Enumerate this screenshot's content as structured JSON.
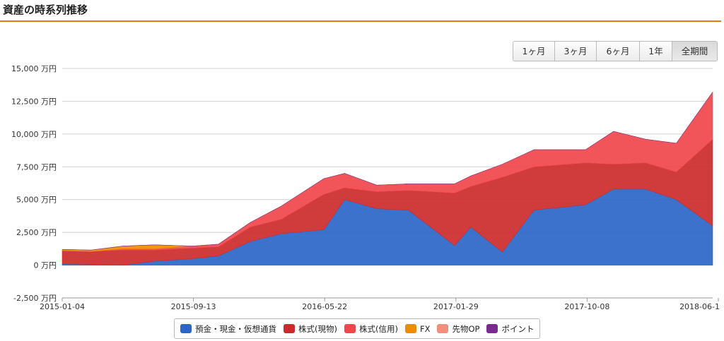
{
  "title": "資産の時系列推移",
  "range_buttons": [
    {
      "label": "1ヶ月",
      "active": false
    },
    {
      "label": "3ヶ月",
      "active": false
    },
    {
      "label": "6ヶ月",
      "active": false
    },
    {
      "label": "1年",
      "active": false
    },
    {
      "label": "全期間",
      "active": true
    }
  ],
  "chart_data": {
    "type": "area",
    "stacked": true,
    "y_unit": "万円",
    "ylim": [
      -2500,
      15000
    ],
    "y_ticks": [
      "15,000 万円",
      "12,500 万円",
      "10,000 万円",
      "7,500 万円",
      "5,000 万円",
      "2,500 万円",
      "0 万円",
      "-2,500 万円"
    ],
    "y_tick_values": [
      15000,
      12500,
      10000,
      7500,
      5000,
      2500,
      0,
      -2500
    ],
    "x_ticks": [
      "2015-01-04",
      "2015-09-13",
      "2016-05-22",
      "2017-01-29",
      "2017-10-08",
      "2018-06-1"
    ],
    "x": [
      "2015-01-04",
      "2015-03-01",
      "2015-05-01",
      "2015-07-01",
      "2015-09-13",
      "2015-11-01",
      "2016-01-01",
      "2016-03-01",
      "2016-05-22",
      "2016-07-01",
      "2016-09-01",
      "2016-11-01",
      "2017-01-29",
      "2017-03-01",
      "2017-05-01",
      "2017-07-01",
      "2017-10-08",
      "2017-12-01",
      "2018-02-01",
      "2018-04-01",
      "2018-06-10"
    ],
    "grid": true,
    "legend_position": "bottom",
    "series": [
      {
        "name": "預金・現金・仮想通貨",
        "color": "#2b66c8",
        "values": [
          100,
          50,
          0,
          300,
          500,
          700,
          1800,
          2400,
          2700,
          5000,
          4300,
          4200,
          1500,
          2900,
          1000,
          4200,
          4600,
          5800,
          5800,
          5000,
          3000
        ]
      },
      {
        "name": "株式(現物)",
        "color": "#cc2b2b",
        "values": [
          1000,
          1000,
          1150,
          850,
          800,
          700,
          1100,
          1100,
          2700,
          900,
          1300,
          1500,
          4000,
          3100,
          5700,
          3300,
          3200,
          1900,
          2000,
          2100,
          6600
        ]
      },
      {
        "name": "株式(信用)",
        "color": "#f0474c",
        "values": [
          0,
          0,
          100,
          100,
          150,
          200,
          350,
          1000,
          1200,
          1100,
          500,
          500,
          700,
          800,
          1000,
          1300,
          1000,
          2500,
          1800,
          2200,
          3600
        ]
      },
      {
        "name": "FX",
        "color": "#f08c00",
        "values": [
          100,
          100,
          200,
          300,
          0,
          0,
          0,
          0,
          0,
          0,
          0,
          0,
          0,
          0,
          0,
          0,
          0,
          0,
          0,
          0,
          0
        ]
      },
      {
        "name": "先物OP",
        "color": "#f28e79",
        "values": [
          0,
          0,
          0,
          0,
          0,
          0,
          0,
          0,
          0,
          0,
          0,
          0,
          0,
          0,
          0,
          0,
          0,
          0,
          0,
          0,
          0
        ]
      },
      {
        "name": "ポイント",
        "color": "#7b2a8f",
        "values": [
          0,
          0,
          0,
          0,
          0,
          0,
          0,
          0,
          0,
          0,
          0,
          0,
          0,
          0,
          0,
          0,
          0,
          0,
          0,
          0,
          0
        ]
      }
    ]
  }
}
